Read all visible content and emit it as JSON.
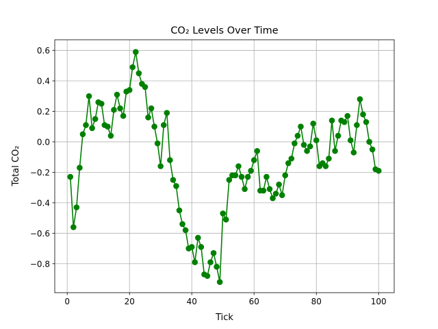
{
  "chart_data": {
    "type": "line",
    "title": "CO₂ Levels Over Time",
    "xlabel": "Tick",
    "ylabel": "Total CO₂",
    "xlim": [
      -4,
      105
    ],
    "ylim": [
      -0.99,
      0.67
    ],
    "xticks": [
      0,
      20,
      40,
      60,
      80,
      100
    ],
    "yticks": [
      0.6,
      0.4,
      0.2,
      0.0,
      -0.2,
      -0.4,
      -0.6,
      -0.8
    ],
    "ytick_labels": [
      "0.6",
      "0.4",
      "0.2",
      "0.0",
      "−0.2",
      "−0.4",
      "−0.6",
      "−0.8"
    ],
    "grid": true,
    "color": "#008000",
    "marker": "circle",
    "series": [
      {
        "x": [
          1,
          2,
          3,
          4,
          5,
          6,
          7,
          8,
          9,
          10,
          11,
          12,
          13,
          14,
          15,
          16,
          17,
          18,
          19,
          20,
          21,
          22,
          23,
          24,
          25,
          26,
          27,
          28,
          29,
          30,
          31,
          32,
          33,
          34,
          35,
          36,
          37,
          38,
          39,
          40,
          41,
          42,
          43,
          44,
          45,
          46,
          47,
          48,
          49,
          50,
          51,
          52,
          53,
          54,
          55,
          56,
          57,
          58,
          59,
          60,
          61,
          62,
          63,
          64,
          65,
          66,
          67,
          68,
          69,
          70,
          71,
          72,
          73,
          74,
          75,
          76,
          77,
          78,
          79,
          80,
          81,
          82,
          83,
          84,
          85,
          86,
          87,
          88,
          89,
          90,
          91,
          92,
          93,
          94,
          95,
          96,
          97,
          98,
          99,
          100
        ],
        "values": [
          -0.23,
          -0.56,
          -0.43,
          -0.17,
          0.05,
          0.11,
          0.3,
          0.09,
          0.15,
          0.26,
          0.25,
          0.11,
          0.1,
          0.04,
          0.21,
          0.31,
          0.22,
          0.17,
          0.33,
          0.34,
          0.49,
          0.59,
          0.45,
          0.38,
          0.36,
          0.16,
          0.22,
          0.1,
          -0.01,
          -0.16,
          0.11,
          0.19,
          -0.12,
          -0.25,
          -0.29,
          -0.45,
          -0.54,
          -0.58,
          -0.7,
          -0.69,
          -0.79,
          -0.63,
          -0.69,
          -0.87,
          -0.88,
          -0.79,
          -0.73,
          -0.82,
          -0.92,
          -0.47,
          -0.51,
          -0.25,
          -0.22,
          -0.22,
          -0.16,
          -0.23,
          -0.31,
          -0.23,
          -0.19,
          -0.12,
          -0.06,
          -0.32,
          -0.32,
          -0.23,
          -0.31,
          -0.37,
          -0.34,
          -0.28,
          -0.35,
          -0.22,
          -0.14,
          -0.11,
          -0.01,
          0.04,
          0.1,
          -0.02,
          -0.06,
          -0.03,
          0.12,
          0.01,
          -0.16,
          -0.14,
          -0.16,
          -0.11,
          0.14,
          -0.06,
          0.04,
          0.14,
          0.13,
          0.17,
          0.01,
          -0.07,
          0.11,
          0.28,
          0.18,
          0.13,
          0.0,
          -0.05,
          -0.18,
          -0.19
        ]
      }
    ]
  }
}
